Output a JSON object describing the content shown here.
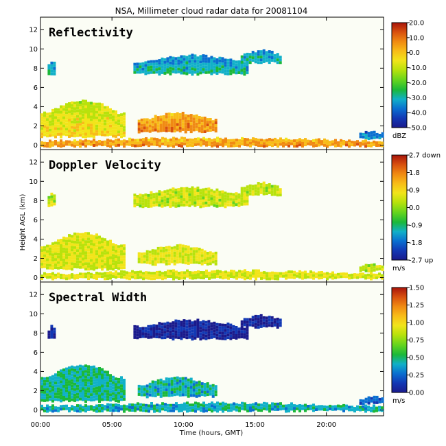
{
  "title": "NSA, Millimeter cloud radar data for 20081104",
  "y_axis_label": "Height AGL (km)",
  "x_axis_label": "Time (hours, GMT)",
  "x_ticks": [
    "00:00",
    "05:00",
    "10:00",
    "15:00",
    "20:00"
  ],
  "y_ticks": [
    "0",
    "2",
    "4",
    "6",
    "8",
    "10",
    "12"
  ],
  "panels": [
    {
      "name": "Reflectivity",
      "unit": "dBZ",
      "colorbar_ticks": [
        "20.0",
        "10.0",
        "0.0",
        "-10.0",
        "-20.0",
        "-30.0",
        "-40.0",
        "-50.0"
      ]
    },
    {
      "name": "Doppler Velocity",
      "unit": "m/s",
      "colorbar_ticks": [
        "2.7 down",
        "1.8",
        "0.9",
        "0.0",
        "-0.9",
        "-1.8",
        "-2.7 up"
      ]
    },
    {
      "name": "Spectral Width",
      "unit": "m/s",
      "colorbar_ticks": [
        "1.50",
        "1.25",
        "1.00",
        "0.75",
        "0.50",
        "0.25",
        "0.00"
      ]
    }
  ],
  "colors": {
    "background": "#ffffff",
    "plot_background": "#fbfdf5"
  },
  "chart_data": {
    "type": "heatmap",
    "x_unit": "hours GMT",
    "x_range": [
      0,
      24
    ],
    "y_unit": "km",
    "y_range": [
      -0.6,
      13.3
    ],
    "colormap": [
      "#1a1a8c",
      "#1238b4",
      "#0a6fd0",
      "#11b0c8",
      "#1bb83a",
      "#63d41e",
      "#b8e20c",
      "#f2e41a",
      "#f8bc18",
      "#f08a12",
      "#d8500e",
      "#a8140a"
    ],
    "cloud_layers": [
      {
        "start_h": 0.0,
        "end_h": 24.0,
        "base_km": 0.0,
        "top_km": 0.9,
        "reflectivity_dbz": 2,
        "velocity_ms": 0.5,
        "width_ms": 0.45
      },
      {
        "start_h": 0.0,
        "end_h": 5.8,
        "base_km": 1.0,
        "top_km": 4.8,
        "reflectivity_dbz": -8,
        "velocity_ms": 0.5,
        "width_ms": 0.5
      },
      {
        "start_h": 6.8,
        "end_h": 12.2,
        "base_km": 1.5,
        "top_km": 3.5,
        "reflectivity_dbz": 4,
        "velocity_ms": 0.5,
        "width_ms": 0.45
      },
      {
        "start_h": 6.5,
        "end_h": 14.5,
        "base_km": 7.5,
        "top_km": 9.5,
        "reflectivity_dbz": -30,
        "velocity_ms": 0.3,
        "width_ms": 0.1
      },
      {
        "start_h": 14.0,
        "end_h": 16.8,
        "base_km": 8.7,
        "top_km": 10.0,
        "reflectivity_dbz": -30,
        "velocity_ms": 0.3,
        "width_ms": 0.1
      },
      {
        "start_h": 0.5,
        "end_h": 1.0,
        "base_km": 7.5,
        "top_km": 9.0,
        "reflectivity_dbz": -30,
        "velocity_ms": 0.3,
        "width_ms": 0.1
      },
      {
        "start_h": 22.3,
        "end_h": 24.0,
        "base_km": 0.8,
        "top_km": 1.6,
        "reflectivity_dbz": -35,
        "velocity_ms": 0.3,
        "width_ms": 0.3
      }
    ]
  }
}
